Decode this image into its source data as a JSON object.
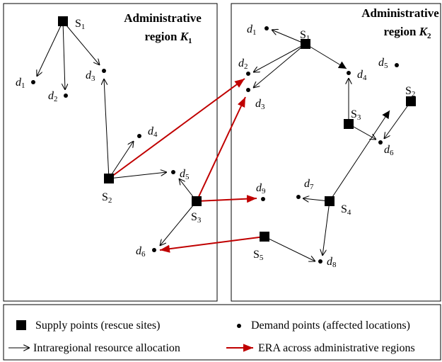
{
  "regions": [
    {
      "title": "Administrative",
      "subtitle": "region",
      "symbol": "K",
      "index": "1"
    },
    {
      "title": "Administrative",
      "subtitle": "region",
      "symbol": "K",
      "index": "2"
    }
  ],
  "left_nodes": [
    {
      "name": "S",
      "index": "1"
    },
    {
      "name": "d",
      "index": "1"
    },
    {
      "name": "d",
      "index": "2"
    },
    {
      "name": "d",
      "index": "3"
    },
    {
      "name": "d",
      "index": "4"
    },
    {
      "name": "S",
      "index": "2"
    },
    {
      "name": "d",
      "index": "5"
    },
    {
      "name": "S",
      "index": "3"
    },
    {
      "name": "d",
      "index": "6"
    }
  ],
  "right_nodes": [
    {
      "name": "d",
      "index": "1"
    },
    {
      "name": "S",
      "index": "1"
    },
    {
      "name": "d",
      "index": "2"
    },
    {
      "name": "d",
      "index": "3"
    },
    {
      "name": "d",
      "index": "4"
    },
    {
      "name": "d",
      "index": "5"
    },
    {
      "name": "S",
      "index": "2"
    },
    {
      "name": "S",
      "index": "3"
    },
    {
      "name": "d",
      "index": "6"
    },
    {
      "name": "d",
      "index": "7"
    },
    {
      "name": "S",
      "index": "4"
    },
    {
      "name": "d",
      "index": "9"
    },
    {
      "name": "S",
      "index": "5"
    },
    {
      "name": "d",
      "index": "8"
    }
  ],
  "legend": {
    "supply": "Supply points (rescue sites)",
    "demand": "Demand points (affected locations)",
    "intra": "Intraregional resource allocation",
    "era": "ERA across administrative regions"
  }
}
